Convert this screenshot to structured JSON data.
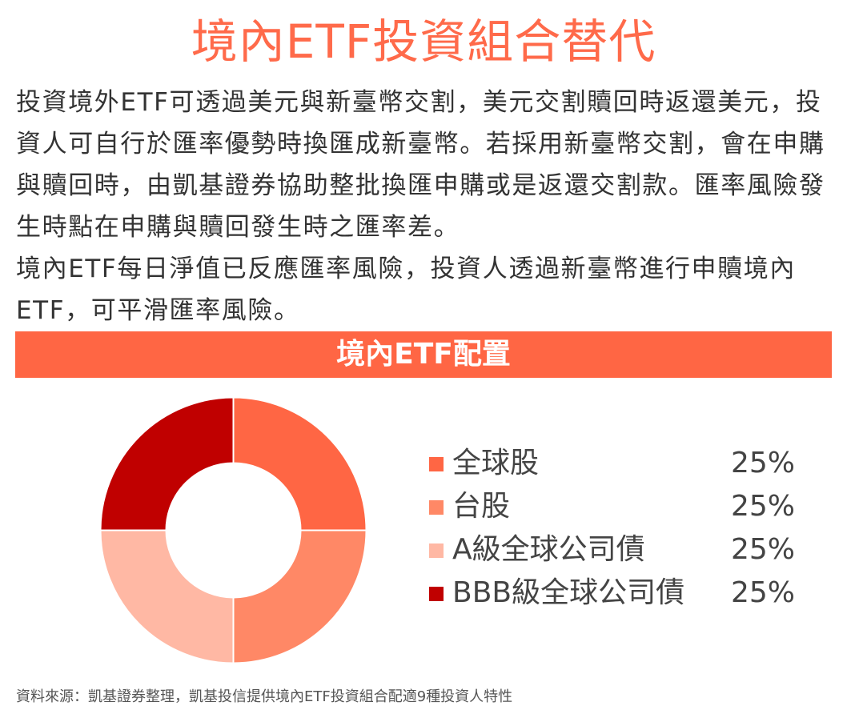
{
  "title": "境內ETF投資組合替代",
  "intro": {
    "paragraph_1": "投資境外ETF可透過美元與新臺幣交割，美元交割贖回時返還美元，投資人可自行於匯率優勢時換匯成新臺幣。若採用新臺幣交割，會在申購與贖回時，由凱基證券協助整批換匯申購或是返還交割款。匯率風險發生時點在申購與贖回發生時之匯率差。",
    "paragraph_2": "境內ETF每日淨值已反應匯率風險，投資人透過新臺幣進行申贖境內ETF，可平滑匯率風險。"
  },
  "chart_data": {
    "type": "pie",
    "title": "境內ETF配置",
    "donut": true,
    "categories": [
      "全球股",
      "台股",
      "A級全球公司債",
      "BBB級全球公司債"
    ],
    "values": [
      25,
      25,
      25,
      25
    ],
    "value_labels": [
      "25%",
      "25%",
      "25%",
      "25%"
    ],
    "colors": [
      "#ff6644",
      "#ff8866",
      "#ffb8a4",
      "#c00000"
    ],
    "legend_position": "right"
  },
  "source": "資料來源：凱基證券整理，凱基投信提供境內ETF投資組合配適9種投資人特性"
}
